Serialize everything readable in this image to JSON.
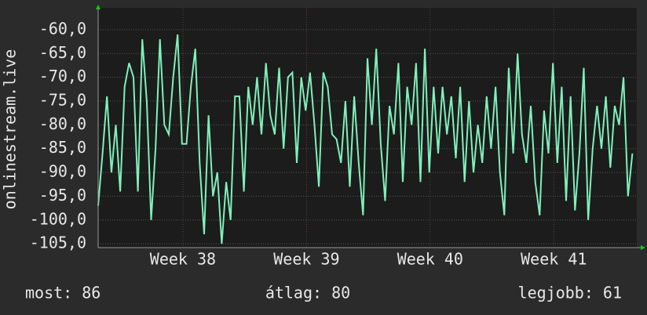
{
  "chart_data": {
    "type": "line",
    "y_label": "onlinestream.live",
    "color": "#7ff0bb",
    "x": [
      0,
      0.25,
      0.5,
      0.75,
      1,
      1.25,
      1.5,
      1.75,
      2,
      2.25,
      2.5,
      2.75,
      3,
      3.25,
      3.5,
      3.75,
      4,
      4.25,
      4.5,
      4.75,
      5,
      5.25,
      5.5,
      5.75,
      6,
      6.25,
      6.5,
      6.75,
      7,
      7.25,
      7.5,
      7.75,
      8,
      8.25,
      8.5,
      8.75,
      9,
      9.25,
      9.5,
      9.75,
      10,
      10.25,
      10.5,
      10.75,
      11,
      11.25,
      11.5,
      11.75,
      12,
      12.25,
      12.5,
      12.75,
      13,
      13.25,
      13.5,
      13.75,
      14,
      14.25,
      14.5,
      14.75,
      15,
      15.25,
      15.5,
      15.75,
      16,
      16.25,
      16.5,
      16.75,
      17,
      17.25,
      17.5,
      17.75,
      18,
      18.25,
      18.5,
      18.75,
      19,
      19.25,
      19.5,
      19.75,
      20,
      20.25,
      20.5,
      20.75,
      21,
      21.25,
      21.5,
      21.75,
      22,
      22.25,
      22.5,
      22.75,
      23,
      23.25,
      23.5,
      23.75,
      24,
      24.25,
      24.5,
      24.75,
      25,
      25.25,
      25.5,
      25.75,
      26,
      26.25,
      26.5,
      26.75,
      27,
      27.25,
      27.5,
      27.75,
      28,
      28.25,
      28.5,
      28.75,
      29,
      29.25,
      29.5,
      29.75,
      30,
      30.25
    ],
    "values": [
      -97,
      -86,
      -74,
      -90,
      -80,
      -94,
      -72,
      -67,
      -70,
      -94,
      -62,
      -75,
      -100,
      -85,
      -62,
      -80,
      -82,
      -70,
      -61,
      -84,
      -84,
      -72,
      -64,
      -88,
      -103,
      -78,
      -95,
      -90,
      -105,
      -92,
      -100,
      -74,
      -74,
      -94,
      -72,
      -80,
      -70,
      -82,
      -67,
      -78,
      -82,
      -68,
      -85,
      -70,
      -69,
      -88,
      -70,
      -77,
      -69,
      -80,
      -93,
      -69,
      -72,
      -82,
      -83,
      -88,
      -75,
      -93,
      -74,
      -88,
      -99,
      -66,
      -80,
      -64,
      -84,
      -96,
      -76,
      -82,
      -67,
      -92,
      -72,
      -80,
      -67,
      -92,
      -64,
      -90,
      -72,
      -86,
      -72,
      -82,
      -74,
      -87,
      -72,
      -92,
      -75,
      -90,
      -80,
      -88,
      -74,
      -85,
      -72,
      -90,
      -99,
      -68,
      -86,
      -65,
      -82,
      -88,
      -76,
      -92,
      -99,
      -77,
      -86,
      -67,
      -88,
      -72,
      -96,
      -74,
      -98,
      -86,
      -68,
      -100,
      -85,
      -76,
      -85,
      -74,
      -89,
      -76,
      -80,
      -70,
      -95,
      -86
    ],
    "xlim": [
      0,
      30.5
    ],
    "xticks": [
      {
        "value": 4.8,
        "label": "Week 38"
      },
      {
        "value": 11.8,
        "label": "Week 39"
      },
      {
        "value": 18.8,
        "label": "Week 40"
      },
      {
        "value": 25.8,
        "label": "Week 41"
      }
    ],
    "ylim": [
      -105.8,
      -55.4
    ],
    "yticks": [
      {
        "value": -60,
        "label": "-60,0"
      },
      {
        "value": -65,
        "label": "-65,0"
      },
      {
        "value": -70,
        "label": "-70,0"
      },
      {
        "value": -75,
        "label": "-75,0"
      },
      {
        "value": -80,
        "label": "-80,0"
      },
      {
        "value": -85,
        "label": "-85,0"
      },
      {
        "value": -90,
        "label": "-90,0"
      },
      {
        "value": -95,
        "label": "-95,0"
      },
      {
        "value": -100,
        "label": "-100,0"
      },
      {
        "value": -105,
        "label": "-105,0"
      }
    ],
    "grid": true,
    "annotations": [
      "most: 86",
      "átlag: 80",
      "legjobb: 61"
    ]
  }
}
